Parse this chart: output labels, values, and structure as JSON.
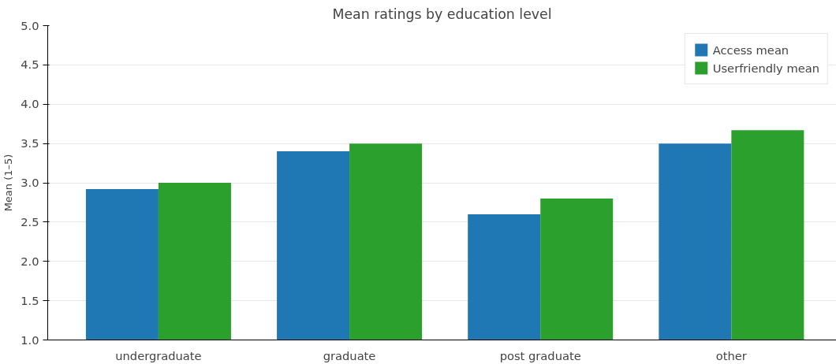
{
  "chart_data": {
    "type": "bar",
    "title": "Mean ratings by education level",
    "ylabel": "Mean (1–5)",
    "categories": [
      "undergraduate",
      "graduate",
      "post graduate",
      "other"
    ],
    "series": [
      {
        "name": "Access mean",
        "color": "#1f77b4",
        "values": [
          2.92,
          3.4,
          2.6,
          3.5
        ]
      },
      {
        "name": "Userfriendly mean",
        "color": "#2ca02c",
        "values": [
          3.0,
          3.5,
          2.8,
          3.67
        ]
      }
    ],
    "ylim": [
      1.0,
      5.0
    ],
    "yticks": [
      {
        "value": 1.0,
        "label": "1.0"
      },
      {
        "value": 1.5,
        "label": "1.5"
      },
      {
        "value": 2.0,
        "label": "2.0"
      },
      {
        "value": 2.5,
        "label": "2.5"
      },
      {
        "value": 3.0,
        "label": "3.0"
      },
      {
        "value": 3.5,
        "label": "3.5"
      },
      {
        "value": 4.0,
        "label": "4.0"
      },
      {
        "value": 4.5,
        "label": "4.5"
      },
      {
        "value": 5.0,
        "label": "5.0"
      }
    ],
    "grid": "y",
    "legend": "top right"
  }
}
